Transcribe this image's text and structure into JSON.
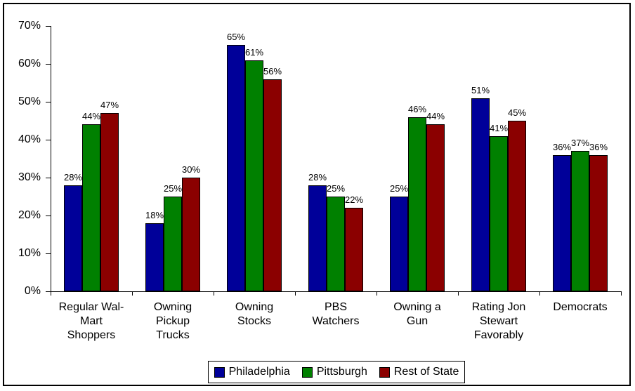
{
  "chart_data": {
    "type": "bar",
    "title": "",
    "categories": [
      "Regular Wal-Mart Shoppers",
      "Owning Pickup Trucks",
      "Owning Stocks",
      "PBS Watchers",
      "Owning a Gun",
      "Rating Jon Stewart Favorably",
      "Democrats"
    ],
    "category_label_lines": [
      [
        "Regular Wal-",
        "Mart",
        "Shoppers"
      ],
      [
        "Owning",
        "Pickup",
        "Trucks"
      ],
      [
        "Owning",
        "Stocks"
      ],
      [
        "PBS",
        "Watchers"
      ],
      [
        "Owning a",
        "Gun"
      ],
      [
        "Rating Jon",
        "Stewart",
        "Favorably"
      ],
      [
        "Democrats"
      ]
    ],
    "series": [
      {
        "name": "Philadelphia",
        "color": "#000099",
        "values": [
          28,
          18,
          65,
          28,
          25,
          51,
          36
        ],
        "labels": [
          "28%",
          "18%",
          "65%",
          "28%",
          "25%",
          "51%",
          "36%"
        ]
      },
      {
        "name": "Pittsburgh",
        "color": "#008000",
        "values": [
          44,
          25,
          61,
          25,
          46,
          41,
          37
        ],
        "labels": [
          "44%",
          "25%",
          "61%",
          "25%",
          "46%",
          "41%",
          "37%"
        ]
      },
      {
        "name": "Rest of State",
        "color": "#8B0000",
        "values": [
          47,
          30,
          56,
          22,
          44,
          45,
          36
        ],
        "labels": [
          "47%",
          "30%",
          "56%",
          "22%",
          "44%",
          "45%",
          "36%"
        ]
      }
    ],
    "xlabel": "",
    "ylabel": "",
    "y_axis": {
      "min": 0,
      "max": 70,
      "step": 10,
      "tick_labels": [
        "0%",
        "10%",
        "20%",
        "30%",
        "40%",
        "50%",
        "60%",
        "70%"
      ]
    },
    "grid": false,
    "legend_position": "bottom",
    "legend_entries": [
      "Philadelphia",
      "Pittsburgh",
      "Rest of State"
    ],
    "colors": {
      "axis": "#000000",
      "text": "#000000",
      "background": "#ffffff",
      "border": "#000000"
    }
  }
}
